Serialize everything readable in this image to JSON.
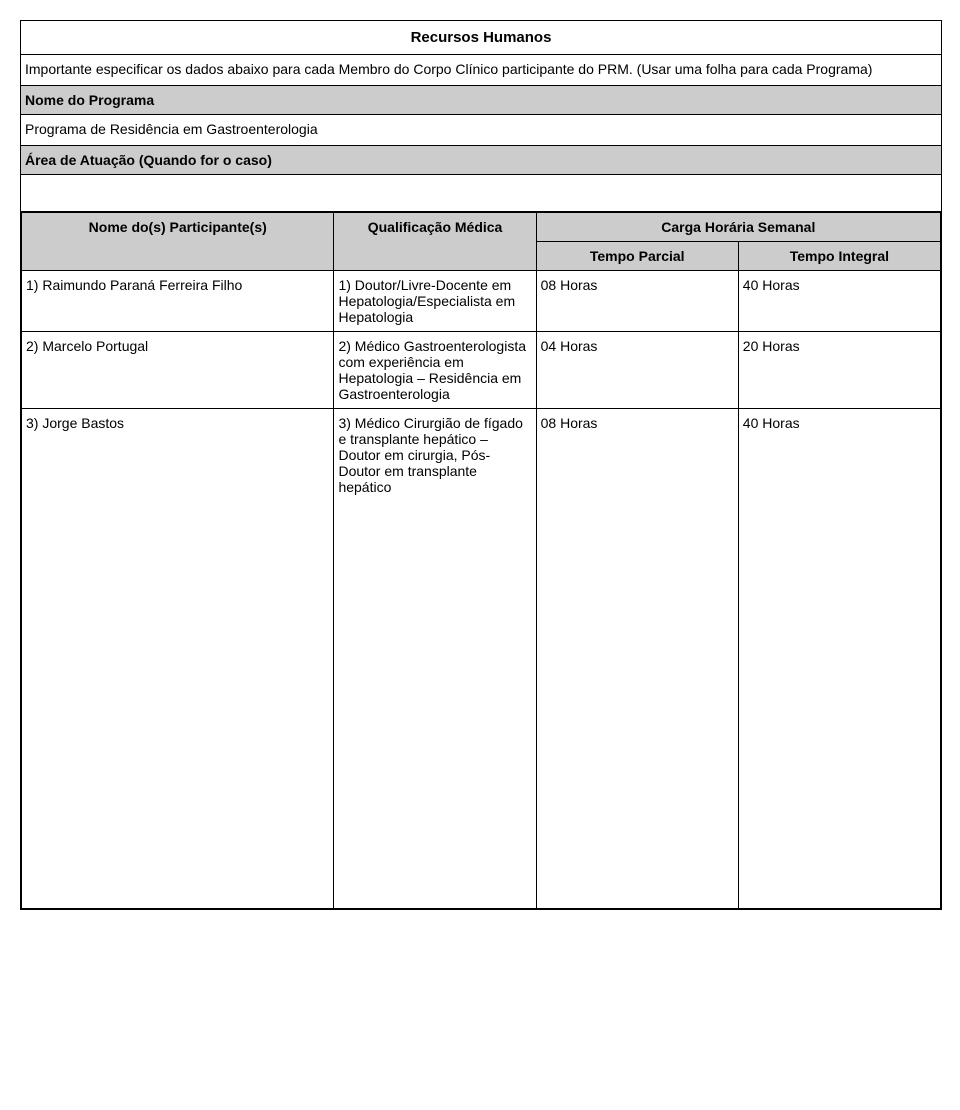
{
  "colors": {
    "header_bg": "#cccccc",
    "border": "#000000",
    "page_bg": "#ffffff",
    "text": "#000000"
  },
  "typography": {
    "font_family": "Arial",
    "base_size_pt": 11,
    "title_size_pt": 12,
    "weight_bold": 700
  },
  "title": "Recursos Humanos",
  "intro": "Importante especificar os dados abaixo para cada Membro do Corpo Clínico participante do PRM. (Usar uma folha para cada Programa)",
  "section_nome_programa_label": "Nome do Programa",
  "section_nome_programa_value": "Programa de Residência em Gastroenterologia",
  "section_area_label": "Área de Atuação (Quando for o caso)",
  "section_area_value": "",
  "table": {
    "headers": {
      "participante": "Nome do(s) Participante(s)",
      "qualificacao": "Qualificação Médica",
      "carga": "Carga Horária Semanal",
      "parcial": "Tempo Parcial",
      "integral": "Tempo Integral"
    },
    "rows": [
      {
        "nome": "1) Raimundo Paraná Ferreira Filho",
        "qual": "1) Doutor/Livre-Docente em Hepatologia/Especialista em Hepatologia",
        "parcial": "08 Horas",
        "integral": "40 Horas"
      },
      {
        "nome": "2) Marcelo Portugal",
        "qual": "2) Médico Gastroenterologista com experiência em Hepatologia – Residência em Gastroenterologia",
        "parcial": "04 Horas",
        "integral": "20 Horas"
      },
      {
        "nome": "3) Jorge Bastos",
        "qual": "3) Médico Cirurgião de fígado e transplante hepático – Doutor em cirurgia, Pós-Doutor em transplante hepático",
        "parcial": "08 Horas",
        "integral": "40 Horas"
      }
    ]
  }
}
